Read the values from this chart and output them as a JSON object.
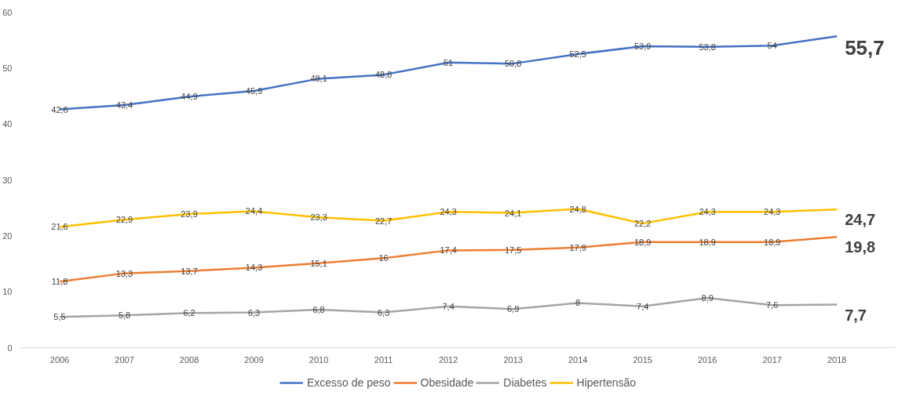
{
  "chart_data": {
    "type": "line",
    "categories": [
      "2006",
      "2007",
      "2008",
      "2009",
      "2010",
      "2011",
      "2012",
      "2013",
      "2014",
      "2015",
      "2016",
      "2017",
      "2018"
    ],
    "series": [
      {
        "name": "Excesso de peso",
        "color": "#4472c4",
        "values": [
          42.6,
          43.4,
          44.9,
          45.9,
          48.1,
          48.8,
          51,
          50.8,
          52.5,
          53.9,
          53.8,
          54,
          55.7
        ],
        "value_labels": [
          "42,6",
          "43,4",
          "44,9",
          "45,9",
          "48,1",
          "48,8",
          "51",
          "50,8",
          "52,5",
          "53,9",
          "53,8",
          "54",
          "55,7"
        ]
      },
      {
        "name": "Obesidade",
        "color": "#ed7d31",
        "values": [
          11.8,
          13.3,
          13.7,
          14.3,
          15.1,
          16,
          17.4,
          17.5,
          17.9,
          18.9,
          18.9,
          18.9,
          19.8
        ],
        "value_labels": [
          "11,8",
          "13,3",
          "13,7",
          "14,3",
          "15,1",
          "16",
          "17,4",
          "17,5",
          "17,9",
          "18,9",
          "18,9",
          "18,9",
          "19,8"
        ]
      },
      {
        "name": "Diabetes",
        "color": "#a5a5a5",
        "values": [
          5.5,
          5.8,
          6.2,
          6.3,
          6.8,
          6.3,
          7.4,
          6.9,
          8,
          7.4,
          8.9,
          7.6,
          7.7
        ],
        "value_labels": [
          "5,5",
          "5,8",
          "6,2",
          "6,3",
          "6,8",
          "6,3",
          "7,4",
          "6,9",
          "8",
          "7,4",
          "8,9",
          "7,6",
          "7,7"
        ]
      },
      {
        "name": "Hipertensão",
        "color": "#ffc000",
        "values": [
          21.6,
          22.9,
          23.9,
          24.4,
          23.3,
          22.7,
          24.3,
          24.1,
          24.8,
          22.2,
          24.3,
          24.3,
          24.7
        ],
        "value_labels": [
          "21,6",
          "22,9",
          "23,9",
          "24,4",
          "23,3",
          "22,7",
          "24,3",
          "24,1",
          "24,8",
          "22,2",
          "24,3",
          "24,3",
          "24,7"
        ]
      }
    ],
    "ylim": [
      0,
      60
    ],
    "yticks": [
      0,
      10,
      20,
      30,
      40,
      50,
      60
    ],
    "grid": false,
    "legend": "bottom",
    "marker": "none",
    "line_style": "solid"
  }
}
